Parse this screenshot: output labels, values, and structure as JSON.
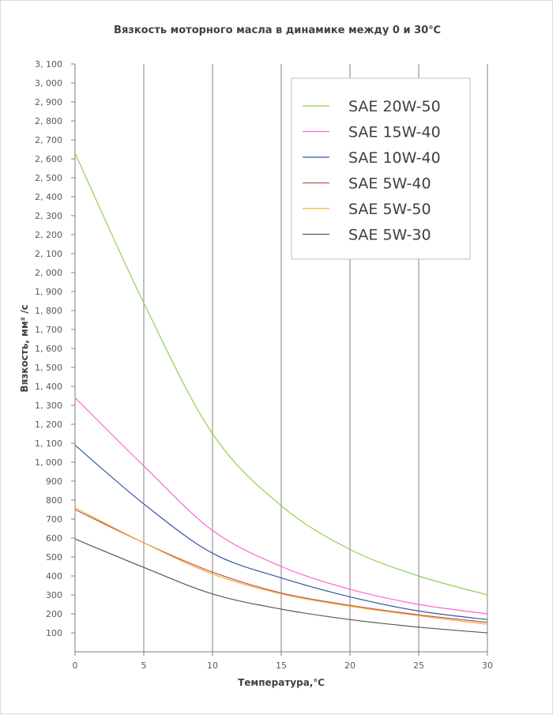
{
  "chart_data": {
    "type": "line",
    "title": "Вязкость моторного масла в динамике между 0 и 30℃",
    "xlabel": "Температура,℃",
    "ylabel": "Вязкость,  мм² /с",
    "xlim": [
      0,
      30
    ],
    "ylim": [
      0,
      3100
    ],
    "x_ticks": [
      "0",
      "5",
      "10",
      "15",
      "20",
      "25",
      "30"
    ],
    "y_ticks": [
      "100",
      "200",
      "300",
      "400",
      "500",
      "600",
      "700",
      "800",
      "900",
      "1, 000",
      "1, 100",
      "1, 200",
      "1, 300",
      "1, 400",
      "1, 500",
      "1, 600",
      "1, 700",
      "1, 800",
      "1, 900",
      "2, 000",
      "2, 100",
      "2, 200",
      "2, 300",
      "2, 400",
      "2, 500",
      "2, 600",
      "2, 700",
      "2, 800",
      "2, 900",
      "3, 000",
      "3, 100"
    ],
    "grid": true,
    "legend_position": "top-right",
    "x": [
      0,
      5,
      10,
      15,
      20,
      25,
      30
    ],
    "series": [
      {
        "name": "SAE 20W-50",
        "color": "#92d050",
        "values": [
          2630,
          1840,
          1150,
          770,
          540,
          400,
          300
        ]
      },
      {
        "name": "SAE 15W-40",
        "color": "#ff66cc",
        "values": [
          1340,
          980,
          640,
          450,
          330,
          250,
          200
        ]
      },
      {
        "name": "SAE 10W-40",
        "color": "#3355aa",
        "values": [
          1090,
          780,
          520,
          390,
          290,
          215,
          170
        ]
      },
      {
        "name": "SAE 5W-40",
        "color": "#c0504d",
        "values": [
          750,
          575,
          420,
          310,
          245,
          195,
          155
        ]
      },
      {
        "name": "SAE 5W-50",
        "color": "#f0b030",
        "values": [
          760,
          575,
          410,
          305,
          240,
          190,
          145
        ]
      },
      {
        "name": "SAE 5W-30",
        "color": "#595959",
        "values": [
          595,
          445,
          305,
          225,
          170,
          130,
          100
        ]
      }
    ]
  }
}
